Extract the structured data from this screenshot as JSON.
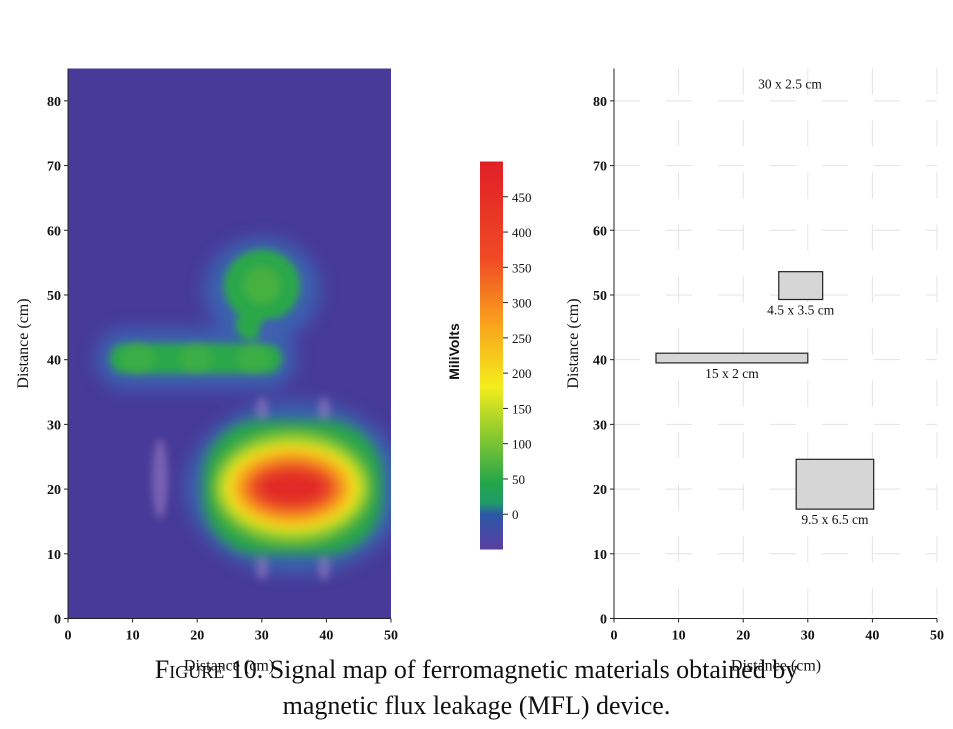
{
  "chart_data": [
    {
      "type": "heatmap",
      "xlabel": "Distance (cm)",
      "ylabel": "Distance (cm)",
      "xlim": [
        0,
        50
      ],
      "ylim": [
        0,
        85
      ],
      "xticks": [
        0,
        10,
        20,
        30,
        40,
        50
      ],
      "yticks": [
        0,
        10,
        20,
        30,
        40,
        50,
        60,
        70,
        80
      ],
      "colorbar": {
        "label": "MiliVolts",
        "range": [
          -50,
          500
        ],
        "ticks": [
          0,
          50,
          100,
          150,
          200,
          250,
          300,
          350,
          400,
          450
        ],
        "colors": [
          "#473a98",
          "#2d57a8",
          "#22a64a",
          "#8fcb2e",
          "#f4ed1c",
          "#f9a31c",
          "#ef4a24",
          "#e01f26"
        ]
      },
      "background_value": 0,
      "features": [
        {
          "shape": "blob",
          "center": [
            30,
            52
          ],
          "extent": [
            12,
            11
          ],
          "peak": 60
        },
        {
          "shape": "bar",
          "from": [
            7,
            40
          ],
          "to": [
            33,
            40
          ],
          "thickness": 4,
          "peak": 45
        },
        {
          "shape": "blob",
          "center": [
            35,
            20
          ],
          "extent": [
            28,
            20
          ],
          "peak": 480
        }
      ]
    },
    {
      "type": "scatter",
      "xlabel": "Distance (cm)",
      "ylabel": "Distance (cm)",
      "xlim": [
        0,
        50
      ],
      "ylim": [
        0,
        85
      ],
      "xticks": [
        0,
        10,
        20,
        30,
        40,
        50
      ],
      "yticks": [
        0,
        10,
        20,
        30,
        40,
        50,
        60,
        70,
        80
      ],
      "grid": true,
      "annotations": [
        {
          "label": "30 x 2.5 cm"
        }
      ],
      "defects": [
        {
          "label": "4.5 x 3.5  cm",
          "x": [
            25.5,
            32.3
          ],
          "y": [
            49.3,
            53.6
          ]
        },
        {
          "label": "15 x 2 cm",
          "x": [
            6.5,
            30
          ],
          "y": [
            39.5,
            41
          ]
        },
        {
          "label": "9.5 x 6.5 cm",
          "x": [
            28.2,
            40.2
          ],
          "y": [
            16.9,
            24.6
          ]
        }
      ]
    }
  ],
  "caption": {
    "figure_number": "Figure 10.",
    "text": "Signal map of ferromagnetic materials obtained by",
    "text_line2": "magnetic flux leakage (MFL) device."
  }
}
